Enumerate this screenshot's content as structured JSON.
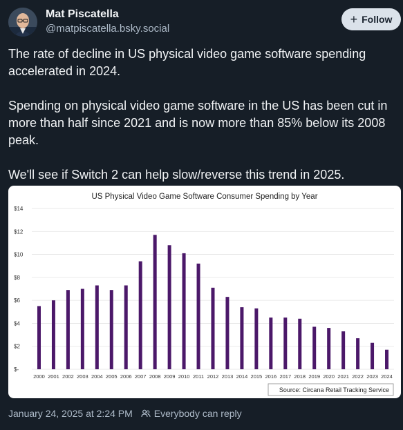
{
  "post": {
    "author_name": "Mat Piscatella",
    "author_handle": "@matpiscatella.bsky.social",
    "follow_label": "Follow",
    "paragraphs": [
      "The rate of decline in US physical video game software spending accelerated in 2024.",
      "Spending on physical video game software in the US has been cut in more than half since 2021 and is now more than 85% below its 2008 peak.",
      "We'll see if Switch 2 can help slow/reverse this trend in 2025."
    ],
    "timestamp": "January 24, 2025 at 2:24 PM",
    "reply_setting": "Everybody can reply"
  },
  "chart_data": {
    "type": "bar",
    "title": "US Physical Video Game Software Consumer Spending by Year",
    "categories": [
      "2000",
      "2001",
      "2002",
      "2003",
      "2004",
      "2005",
      "2006",
      "2007",
      "2008",
      "2009",
      "2010",
      "2011",
      "2012",
      "2013",
      "2014",
      "2015",
      "2016",
      "2017",
      "2018",
      "2019",
      "2020",
      "2021",
      "2022",
      "2023",
      "2024"
    ],
    "values": [
      5.5,
      6.0,
      6.9,
      7.0,
      7.3,
      6.9,
      7.3,
      9.4,
      11.7,
      10.8,
      10.1,
      9.2,
      7.1,
      6.3,
      5.4,
      5.3,
      4.5,
      4.5,
      4.4,
      3.7,
      3.6,
      3.3,
      2.7,
      2.3,
      1.7
    ],
    "ylim": [
      0,
      14
    ],
    "yticks": [
      "$-",
      "$2",
      "$4",
      "$6",
      "$8",
      "$10",
      "$12",
      "$14"
    ],
    "bar_color": "#4b1869",
    "grid": true,
    "source_note": "Source: Circana Retail Tracking Service"
  },
  "colors": {
    "background": "#161e27",
    "follow_button": "#dbe2ea",
    "muted_text": "#aebbc9"
  }
}
